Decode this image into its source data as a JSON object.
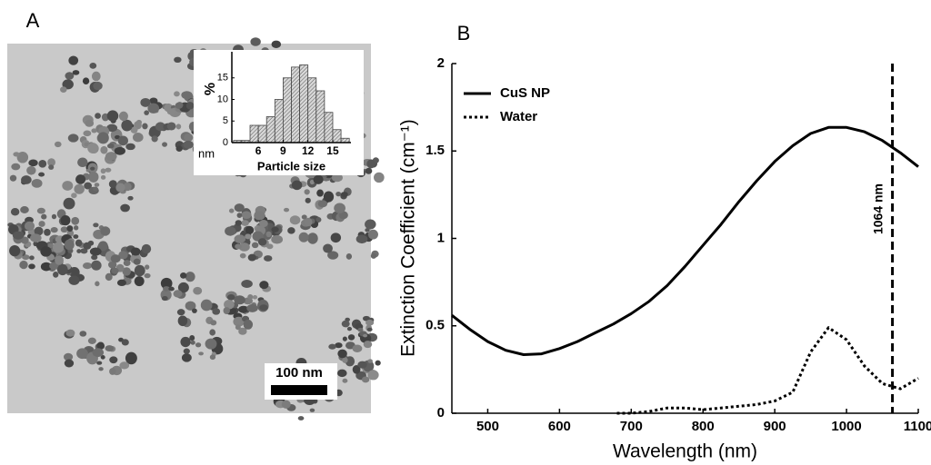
{
  "panels": {
    "a_label": "A",
    "b_label": "B",
    "scale_bar": "100 nm"
  },
  "chart_data": [
    {
      "type": "histogram",
      "ylabel": "%",
      "xunit": "nm",
      "xlabel": "Particle size",
      "bins": [
        3,
        4,
        5,
        6,
        7,
        8,
        9,
        10,
        11,
        12,
        13,
        14,
        15,
        16,
        17
      ],
      "values": [
        0.5,
        0.5,
        4,
        4,
        6,
        10,
        15,
        17.5,
        18,
        15,
        12,
        7,
        3,
        1
      ],
      "color": "#d8d8d8",
      "xlim": [
        2.8,
        17.2
      ],
      "xticks": [
        6,
        9,
        12,
        15
      ],
      "ylim": [
        0,
        20
      ],
      "yticks": [
        0,
        5,
        10,
        15
      ]
    },
    {
      "type": "line",
      "xlabel": "Wavelength (nm)",
      "ylabel": "Extinction Coefficient (cm⁻¹)",
      "xlim": [
        450,
        1100
      ],
      "xticks": [
        500,
        600,
        700,
        800,
        900,
        1000,
        1100
      ],
      "ylim": [
        0,
        2
      ],
      "yticks": [
        0,
        0.5,
        1,
        1.5,
        2
      ],
      "legend": "upper left",
      "series": [
        {
          "name": "CuS NP",
          "color": "#000000",
          "dash": "solid",
          "x": [
            450,
            475,
            500,
            525,
            550,
            575,
            600,
            625,
            650,
            675,
            700,
            725,
            750,
            775,
            800,
            825,
            850,
            875,
            900,
            925,
            950,
            975,
            1000,
            1025,
            1050,
            1075,
            1100
          ],
          "values": [
            0.56,
            0.48,
            0.41,
            0.36,
            0.335,
            0.34,
            0.37,
            0.41,
            0.46,
            0.51,
            0.57,
            0.64,
            0.73,
            0.84,
            0.96,
            1.08,
            1.21,
            1.33,
            1.44,
            1.53,
            1.6,
            1.635,
            1.635,
            1.61,
            1.56,
            1.49,
            1.41
          ]
        },
        {
          "name": "Water",
          "color": "#000000",
          "dash": "dotted",
          "x": [
            680,
            700,
            725,
            750,
            775,
            800,
            825,
            850,
            875,
            900,
            925,
            950,
            975,
            1000,
            1025,
            1050,
            1075,
            1100
          ],
          "values": [
            0,
            0,
            0.01,
            0.03,
            0.03,
            0.02,
            0.03,
            0.04,
            0.05,
            0.07,
            0.12,
            0.35,
            0.49,
            0.42,
            0.27,
            0.17,
            0.14,
            0.2
          ]
        }
      ],
      "vline": {
        "x": 1064,
        "label": "1064 nm"
      }
    }
  ]
}
